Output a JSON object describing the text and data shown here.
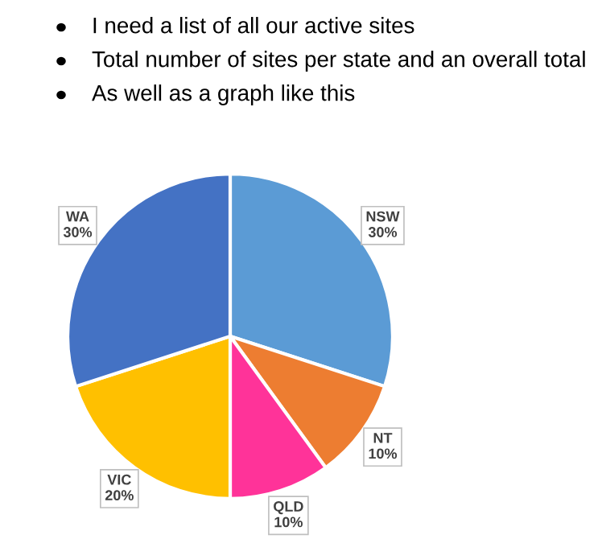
{
  "chart_data": {
    "type": "pie",
    "annotations": [
      "I need a list of all our active sites",
      "Total number of sites per state and an overall total",
      "As well as a graph like this"
    ],
    "categories": [
      "NSW",
      "NT",
      "QLD",
      "VIC",
      "WA"
    ],
    "values": [
      30,
      10,
      10,
      20,
      30
    ],
    "value_labels": [
      "30%",
      "10%",
      "10%",
      "20%",
      "30%"
    ],
    "colors": [
      "#5b9bd5",
      "#ed7d31",
      "#ff3399",
      "#ffc000",
      "#4472c4"
    ],
    "legend": false
  }
}
